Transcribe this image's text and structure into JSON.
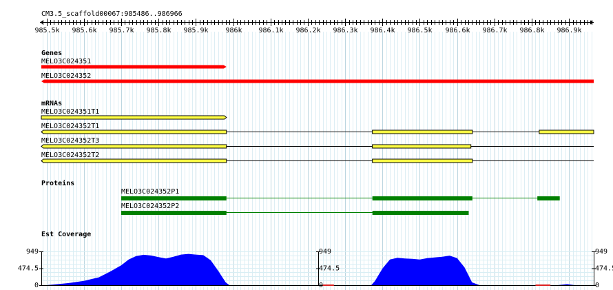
{
  "region_title": "CM3.5_scaffold00067:985486..986966",
  "ruler": {
    "ticks": [
      "985.5k",
      "985.6k",
      "985.7k",
      "985.8k",
      "985.9k",
      "986k",
      "986.1k",
      "986.2k",
      "986.3k",
      "986.4k",
      "986.5k",
      "986.6k",
      "986.7k",
      "986.8k",
      "986.9k"
    ]
  },
  "tracks": {
    "genes": {
      "label": "Genes",
      "color": "#ff0000",
      "features": [
        {
          "name": "MELO3C024351",
          "start": 985486,
          "end": 985982,
          "strand": "+"
        },
        {
          "name": "MELO3C024352",
          "start": 985486,
          "end": 986966,
          "strand": "-"
        }
      ]
    },
    "mrnas": {
      "label": "mRNAs",
      "exon_color": "#ffff44",
      "features": [
        {
          "name": "MELO3C024351T1",
          "strand": "+",
          "exons": [
            [
              985486,
              985982
            ]
          ]
        },
        {
          "name": "MELO3C024352T1",
          "strand": "-",
          "span": [
            985486,
            986966
          ],
          "exons": [
            [
              985486,
              985982
            ],
            [
              986373,
              986641
            ],
            [
              986820,
              986966
            ]
          ]
        },
        {
          "name": "MELO3C024352T3",
          "strand": "-",
          "span": [
            985486,
            986966
          ],
          "exons": [
            [
              985486,
              985982
            ],
            [
              986373,
              986637
            ]
          ]
        },
        {
          "name": "MELO3C024352T2",
          "strand": "-",
          "span": [
            985486,
            986966
          ],
          "exons": [
            [
              985486,
              985982
            ],
            [
              986373,
              986641
            ]
          ]
        }
      ]
    },
    "proteins": {
      "label": "Proteins",
      "color": "#008000",
      "features": [
        {
          "name": "MELO3C024352P1",
          "span": [
            985700,
            986875
          ],
          "exons": [
            [
              985700,
              985982
            ],
            [
              986373,
              986641
            ],
            [
              986815,
              986875
            ]
          ]
        },
        {
          "name": "MELO3C024352P2",
          "span": [
            985700,
            986631
          ],
          "exons": [
            [
              985700,
              985982
            ],
            [
              986373,
              986631
            ]
          ]
        }
      ]
    },
    "est_coverage": {
      "label": "Est Coverage",
      "y_max_label": "949",
      "y_mid_label": "474.5",
      "y_min_label": "0",
      "ylim": [
        0,
        949
      ],
      "fill_color": "#0000ff",
      "profile": [
        [
          985500,
          0
        ],
        [
          985520,
          20
        ],
        [
          985560,
          60
        ],
        [
          985600,
          120
        ],
        [
          985640,
          220
        ],
        [
          985670,
          380
        ],
        [
          985700,
          560
        ],
        [
          985720,
          720
        ],
        [
          985740,
          820
        ],
        [
          985760,
          855
        ],
        [
          985780,
          835
        ],
        [
          985800,
          790
        ],
        [
          985820,
          750
        ],
        [
          985840,
          800
        ],
        [
          985860,
          860
        ],
        [
          985880,
          880
        ],
        [
          985900,
          860
        ],
        [
          985920,
          845
        ],
        [
          985940,
          700
        ],
        [
          985960,
          400
        ],
        [
          985980,
          80
        ],
        [
          985990,
          0
        ],
        [
          986370,
          0
        ],
        [
          986380,
          120
        ],
        [
          986400,
          470
        ],
        [
          986420,
          720
        ],
        [
          986440,
          770
        ],
        [
          986460,
          750
        ],
        [
          986480,
          740
        ],
        [
          986500,
          720
        ],
        [
          986520,
          760
        ],
        [
          986560,
          800
        ],
        [
          986580,
          830
        ],
        [
          986600,
          760
        ],
        [
          986620,
          500
        ],
        [
          986640,
          80
        ],
        [
          986660,
          0
        ],
        [
          986870,
          0
        ],
        [
          986880,
          12
        ],
        [
          986895,
          30
        ],
        [
          986905,
          15
        ],
        [
          986915,
          0
        ]
      ],
      "noise": [
        [
          986240,
          986270
        ],
        [
          986810,
          986850
        ]
      ]
    }
  }
}
